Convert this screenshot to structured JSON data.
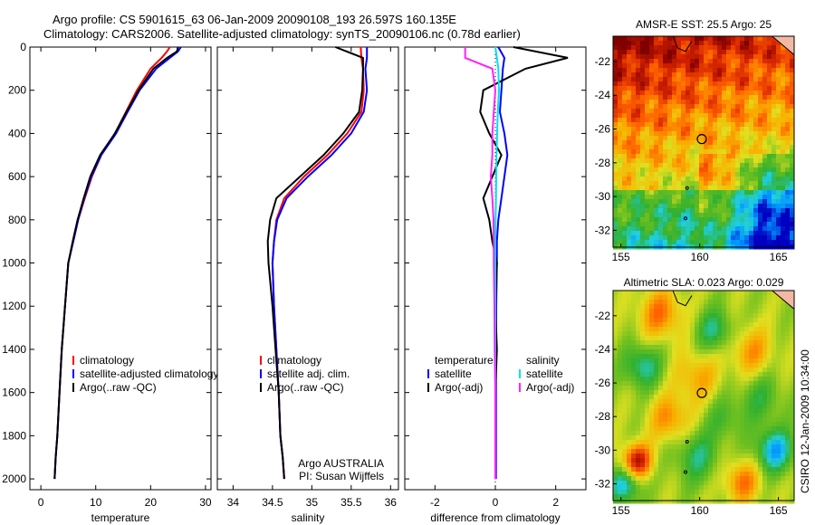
{
  "header": {
    "line1": "Argo profile: CS 5901615_63 06-Jan-2009 20090108_193 26.597S 160.135E",
    "line2": "Climatology: CARS2006. Satellite-adjusted climatology: synTS_20090106.nc (0.78d earlier)"
  },
  "colors": {
    "climatology": "#ff0000",
    "satellite": "#0000ff",
    "argo": "#000000",
    "sal_satellite": "#00e0f0",
    "sal_argo": "#ff22ff",
    "land": "#f2b8a4"
  },
  "chart_data": [
    {
      "type": "line",
      "id": "temperature",
      "xlabel": "temperature",
      "ylabel": "",
      "xlim": [
        -2,
        31
      ],
      "ylim": [
        2050,
        0
      ],
      "y_inverted": true,
      "xticks": [
        0,
        10,
        20,
        30
      ],
      "yticks": [
        0,
        200,
        400,
        600,
        800,
        1000,
        1200,
        1400,
        1600,
        1800,
        2000
      ],
      "legend": [
        "climatology",
        "satellite-adjusted climatology",
        "Argo(..raw -QC)"
      ],
      "series": [
        {
          "name": "climatology",
          "color": "#ff0000",
          "x": [
            23.5,
            23.0,
            22.0,
            20.0,
            17.5,
            15.5,
            13.5,
            11.0,
            9.3,
            8.0,
            6.8,
            5.9,
            5.0,
            4.4,
            3.8,
            3.4,
            3.0,
            2.7,
            2.5
          ],
          "y": [
            0,
            20,
            50,
            100,
            200,
            300,
            400,
            500,
            600,
            700,
            800,
            900,
            1000,
            1200,
            1400,
            1600,
            1800,
            1900,
            2000
          ]
        },
        {
          "name": "satellite-adjusted climatology",
          "color": "#0000ff",
          "x": [
            25.5,
            25.0,
            23.5,
            21.0,
            18.0,
            15.8,
            13.7,
            11.0,
            9.2,
            7.9,
            6.8,
            5.9,
            5.0,
            4.4,
            3.8,
            3.4,
            3.0,
            2.7,
            2.5
          ],
          "y": [
            0,
            20,
            50,
            100,
            200,
            300,
            400,
            500,
            600,
            700,
            800,
            900,
            1000,
            1200,
            1400,
            1600,
            1800,
            1900,
            2000
          ]
        },
        {
          "name": "Argo(..raw -QC)",
          "color": "#000000",
          "x": [
            25.0,
            24.8,
            23.0,
            20.5,
            17.8,
            15.6,
            13.5,
            10.8,
            9.0,
            7.8,
            6.7,
            5.8,
            5.0,
            4.4,
            3.8,
            3.4,
            3.0,
            2.7,
            2.5
          ],
          "y": [
            0,
            20,
            50,
            100,
            200,
            300,
            400,
            500,
            600,
            700,
            800,
            900,
            1000,
            1200,
            1400,
            1600,
            1800,
            1900,
            2000
          ]
        }
      ]
    },
    {
      "type": "line",
      "id": "salinity",
      "xlabel": "salinity",
      "ylabel": "",
      "xlim": [
        33.8,
        36.1
      ],
      "ylim": [
        2050,
        0
      ],
      "y_inverted": true,
      "xticks": [
        34,
        34.5,
        35,
        35.5,
        36
      ],
      "legend": [
        "climatology",
        "satellite adj. clim.",
        "Argo(..raw -QC)"
      ],
      "annotations": [
        "Argo AUSTRALIA",
        "PI: Susan Wijffels"
      ],
      "series": [
        {
          "name": "climatology",
          "color": "#ff0000",
          "x": [
            35.62,
            35.63,
            35.65,
            35.66,
            35.63,
            35.45,
            35.2,
            34.9,
            34.65,
            34.55,
            34.52,
            34.5,
            34.52,
            34.55,
            34.58,
            34.6,
            34.63,
            34.65
          ],
          "y": [
            0,
            50,
            100,
            200,
            300,
            400,
            500,
            600,
            700,
            800,
            900,
            1000,
            1200,
            1400,
            1600,
            1800,
            1900,
            2000
          ]
        },
        {
          "name": "satellite adj. clim.",
          "color": "#0000ff",
          "x": [
            35.7,
            35.7,
            35.68,
            35.7,
            35.66,
            35.5,
            35.25,
            34.95,
            34.68,
            34.56,
            34.52,
            34.5,
            34.52,
            34.55,
            34.58,
            34.6,
            34.63,
            34.65
          ],
          "y": [
            0,
            50,
            100,
            200,
            300,
            400,
            500,
            600,
            700,
            800,
            900,
            1000,
            1200,
            1400,
            1600,
            1800,
            1900,
            2000
          ]
        },
        {
          "name": "Argo(..raw -QC)",
          "color": "#000000",
          "x": [
            35.3,
            35.65,
            35.65,
            35.64,
            35.6,
            35.4,
            35.15,
            34.85,
            34.55,
            34.47,
            34.44,
            34.45,
            34.5,
            34.54,
            34.58,
            34.6,
            34.63,
            34.65
          ],
          "y": [
            0,
            50,
            100,
            200,
            300,
            400,
            500,
            600,
            700,
            800,
            900,
            1000,
            1200,
            1400,
            1600,
            1800,
            1900,
            2000
          ]
        }
      ]
    },
    {
      "type": "line",
      "id": "difference",
      "xlabel": "difference from climatology",
      "ylabel": "",
      "xlim": [
        -3,
        3
      ],
      "ylim": [
        2050,
        0
      ],
      "y_inverted": true,
      "xticks": [
        -2,
        0,
        2
      ],
      "legend_temperature": {
        "header": "temperature",
        "items": [
          "satellite",
          "Argo(-adj)"
        ]
      },
      "legend_salinity": {
        "header": "salinity",
        "items": [
          "satellite",
          "Argo(-adj)"
        ]
      },
      "series": [
        {
          "name": "temperature satellite",
          "color": "#0000ff",
          "x": [
            0.1,
            0.3,
            0.25,
            0.2,
            0.15,
            0.3,
            0.4,
            0.3,
            0.2,
            0.1,
            0.05,
            0.05,
            0.03,
            0.02,
            0.02,
            0.02,
            0.02
          ],
          "y": [
            0,
            50,
            100,
            200,
            300,
            400,
            500,
            600,
            700,
            800,
            900,
            1000,
            1200,
            1400,
            1600,
            1800,
            2000
          ]
        },
        {
          "name": "temperature Argo(-adj)",
          "color": "#000000",
          "x": [
            0.6,
            2.4,
            1.0,
            -0.4,
            -0.5,
            -0.2,
            0.2,
            -0.1,
            -0.4,
            -0.2,
            -0.1,
            0.05,
            0.0,
            0.05,
            0.0,
            0.0,
            0.0
          ],
          "y": [
            0,
            50,
            100,
            200,
            300,
            400,
            500,
            600,
            700,
            800,
            900,
            1000,
            1200,
            1400,
            1600,
            1800,
            2000
          ]
        },
        {
          "name": "salinity satellite",
          "color": "#00e0f0",
          "x": [
            0.0,
            0.05,
            0.1,
            0.12,
            0.08,
            0.06,
            0.04,
            0.03,
            0.02,
            0.01,
            0.0,
            0.0,
            0.0,
            0.0,
            0.0,
            0.0,
            0.0
          ],
          "y": [
            0,
            50,
            100,
            200,
            300,
            400,
            500,
            600,
            700,
            800,
            900,
            1000,
            1200,
            1400,
            1600,
            1800,
            2000
          ]
        },
        {
          "name": "salinity Argo(-adj)",
          "color": "#ff22ff",
          "x": [
            -1.0,
            -1.0,
            -0.1,
            0.0,
            -0.05,
            -0.1,
            -0.1,
            -0.15,
            -0.1,
            -0.06,
            -0.05,
            -0.05,
            -0.03,
            -0.02,
            0.0,
            0.0,
            0.0
          ],
          "y": [
            0,
            50,
            100,
            200,
            300,
            400,
            500,
            600,
            700,
            800,
            900,
            1000,
            1200,
            1400,
            1600,
            1800,
            2000
          ]
        }
      ]
    },
    {
      "type": "heatmap",
      "id": "sst_map",
      "title": "AMSR-E SST: 25.5 Argo: 25",
      "xlim": [
        154.5,
        166
      ],
      "ylim": [
        -33,
        -20.5
      ],
      "xticks": [
        155,
        160,
        165
      ],
      "yticks": [
        -22,
        -24,
        -26,
        -28,
        -30,
        -32
      ],
      "marker": {
        "lon": 160.135,
        "lat": -26.597
      }
    },
    {
      "type": "heatmap",
      "id": "sla_map",
      "title": "Altimetric SLA: 0.023 Argo: 0.029",
      "xlim": [
        154.5,
        166
      ],
      "ylim": [
        -33,
        -20.5
      ],
      "xticks": [
        155,
        160,
        165
      ],
      "yticks": [
        -22,
        -24,
        -26,
        -28,
        -30,
        -32
      ],
      "marker": {
        "lon": 160.135,
        "lat": -26.597
      }
    }
  ],
  "footer": {
    "credit": "CSIRO 12-Jan-2009 10:34:00"
  }
}
